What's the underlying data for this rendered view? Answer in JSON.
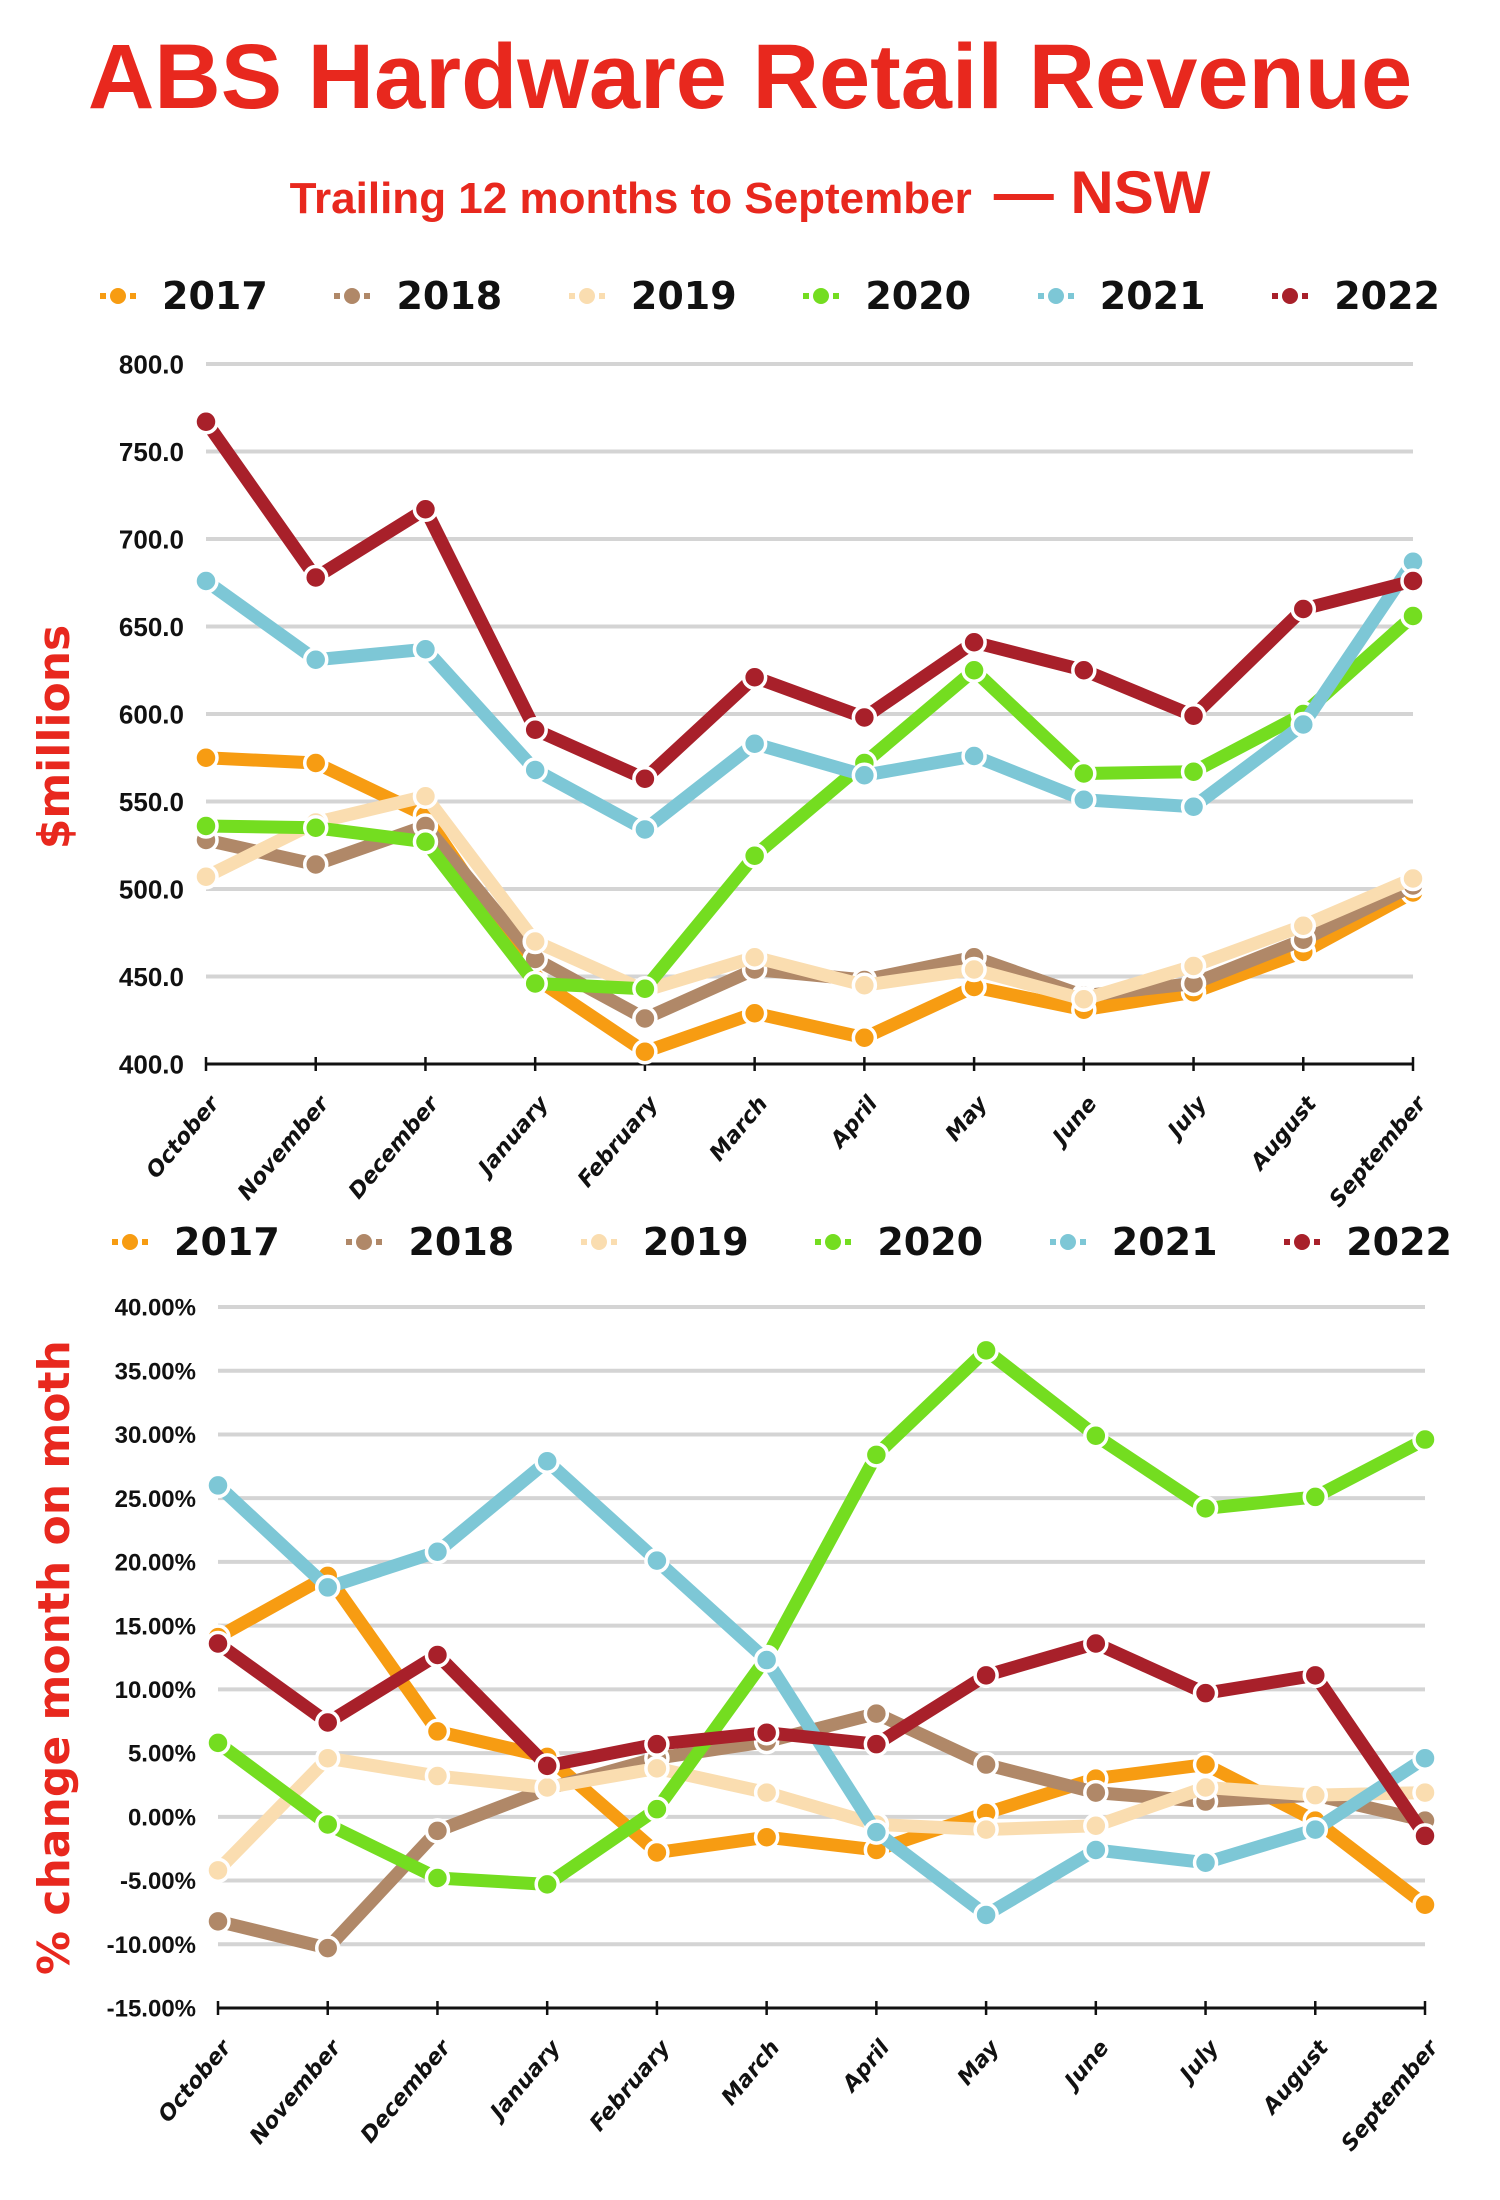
{
  "title": "ABS Hardware Retail Revenue",
  "subtitle": {
    "main": "Trailing 12 months to September",
    "region": "— NSW"
  },
  "legend": [
    {
      "label": "2017",
      "color": "#F79C12"
    },
    {
      "label": "2018",
      "color": "#B08868"
    },
    {
      "label": "2019",
      "color": "#FADDB0"
    },
    {
      "label": "2020",
      "color": "#74DD20"
    },
    {
      "label": "2021",
      "color": "#7DC7D6"
    },
    {
      "label": "2022",
      "color": "#A8202A"
    }
  ],
  "chart_data": [
    {
      "type": "line",
      "title": "ABS Hardware Retail Revenue — Trailing 12 months to September — NSW",
      "xlabel": "",
      "ylabel": "$millions",
      "ylim": [
        400,
        800
      ],
      "yticks": [
        "800.0",
        "750.0",
        "700.0",
        "650.0",
        "600.0",
        "550.0",
        "500.0",
        "450.0",
        "400.0"
      ],
      "ytick_values": [
        800,
        750,
        700,
        650,
        600,
        550,
        500,
        450,
        400
      ],
      "grid": true,
      "legend_position": "top",
      "categories": [
        "October",
        "November",
        "December",
        "January",
        "February",
        "March",
        "April",
        "May",
        "June",
        "July",
        "August",
        "September"
      ],
      "series": [
        {
          "name": "2017",
          "color": "#F79C12",
          "values": [
            575,
            572,
            542,
            449,
            407,
            429,
            415,
            444,
            431,
            441,
            464,
            498
          ]
        },
        {
          "name": "2018",
          "color": "#B08868",
          "values": [
            528,
            514,
            536,
            460,
            426,
            454,
            448,
            461,
            439,
            446,
            471,
            502
          ]
        },
        {
          "name": "2019",
          "color": "#FADDB0",
          "values": [
            507,
            538,
            553,
            470,
            442,
            461,
            445,
            454,
            437,
            456,
            479,
            506
          ]
        },
        {
          "name": "2020",
          "color": "#74DD20",
          "values": [
            536,
            535,
            527,
            446,
            443,
            519,
            572,
            625,
            566,
            567,
            600,
            656
          ]
        },
        {
          "name": "2021",
          "color": "#7DC7D6",
          "values": [
            676,
            631,
            637,
            568,
            534,
            583,
            565,
            576,
            551,
            547,
            594,
            687
          ]
        },
        {
          "name": "2022",
          "color": "#A8202A",
          "values": [
            767,
            678,
            717,
            591,
            563,
            621,
            598,
            641,
            625,
            599,
            660,
            676
          ]
        }
      ]
    },
    {
      "type": "line",
      "title": "",
      "xlabel": "",
      "ylabel": "% change month on moth",
      "ylim": [
        -15,
        40
      ],
      "yticks": [
        "40.00%",
        "35.00%",
        "30.00%",
        "25.00%",
        "20.00%",
        "15.00%",
        "10.00%",
        "5.00%",
        "0.00%",
        "-5.00%",
        "-10.00%",
        "-15.00%"
      ],
      "ytick_values": [
        40,
        35,
        30,
        25,
        20,
        15,
        10,
        5,
        0,
        -5,
        -10,
        -15
      ],
      "grid": true,
      "legend_position": "top",
      "categories": [
        "October",
        "November",
        "December",
        "January",
        "February",
        "March",
        "April",
        "May",
        "June",
        "July",
        "August",
        "September"
      ],
      "series": [
        {
          "name": "2017",
          "color": "#F79C12",
          "values": [
            14.1,
            18.9,
            6.7,
            4.7,
            -2.8,
            -1.6,
            -2.6,
            0.3,
            3.0,
            4.1,
            -0.3,
            -6.9
          ]
        },
        {
          "name": "2018",
          "color": "#B08868",
          "values": [
            -8.2,
            -10.3,
            -1.1,
            2.2,
            4.6,
            5.9,
            8.1,
            4.1,
            1.9,
            1.2,
            1.7,
            -0.3
          ]
        },
        {
          "name": "2019",
          "color": "#FADDB0",
          "values": [
            -4.2,
            4.6,
            3.2,
            2.3,
            3.8,
            1.9,
            -0.6,
            -1.0,
            -0.7,
            2.3,
            1.7,
            1.9
          ]
        },
        {
          "name": "2020",
          "color": "#74DD20",
          "values": [
            5.8,
            -0.6,
            -4.8,
            -5.3,
            0.6,
            12.5,
            28.4,
            36.6,
            29.9,
            24.2,
            25.1,
            29.6
          ]
        },
        {
          "name": "2021",
          "color": "#7DC7D6",
          "values": [
            26.0,
            18.0,
            20.8,
            27.9,
            20.1,
            12.3,
            -1.2,
            -7.7,
            -2.6,
            -3.6,
            -1.0,
            4.6
          ]
        },
        {
          "name": "2022",
          "color": "#A8202A",
          "values": [
            13.6,
            7.4,
            12.7,
            4.0,
            5.7,
            6.6,
            5.7,
            11.1,
            13.6,
            9.7,
            11.1,
            -1.5
          ]
        }
      ]
    }
  ]
}
